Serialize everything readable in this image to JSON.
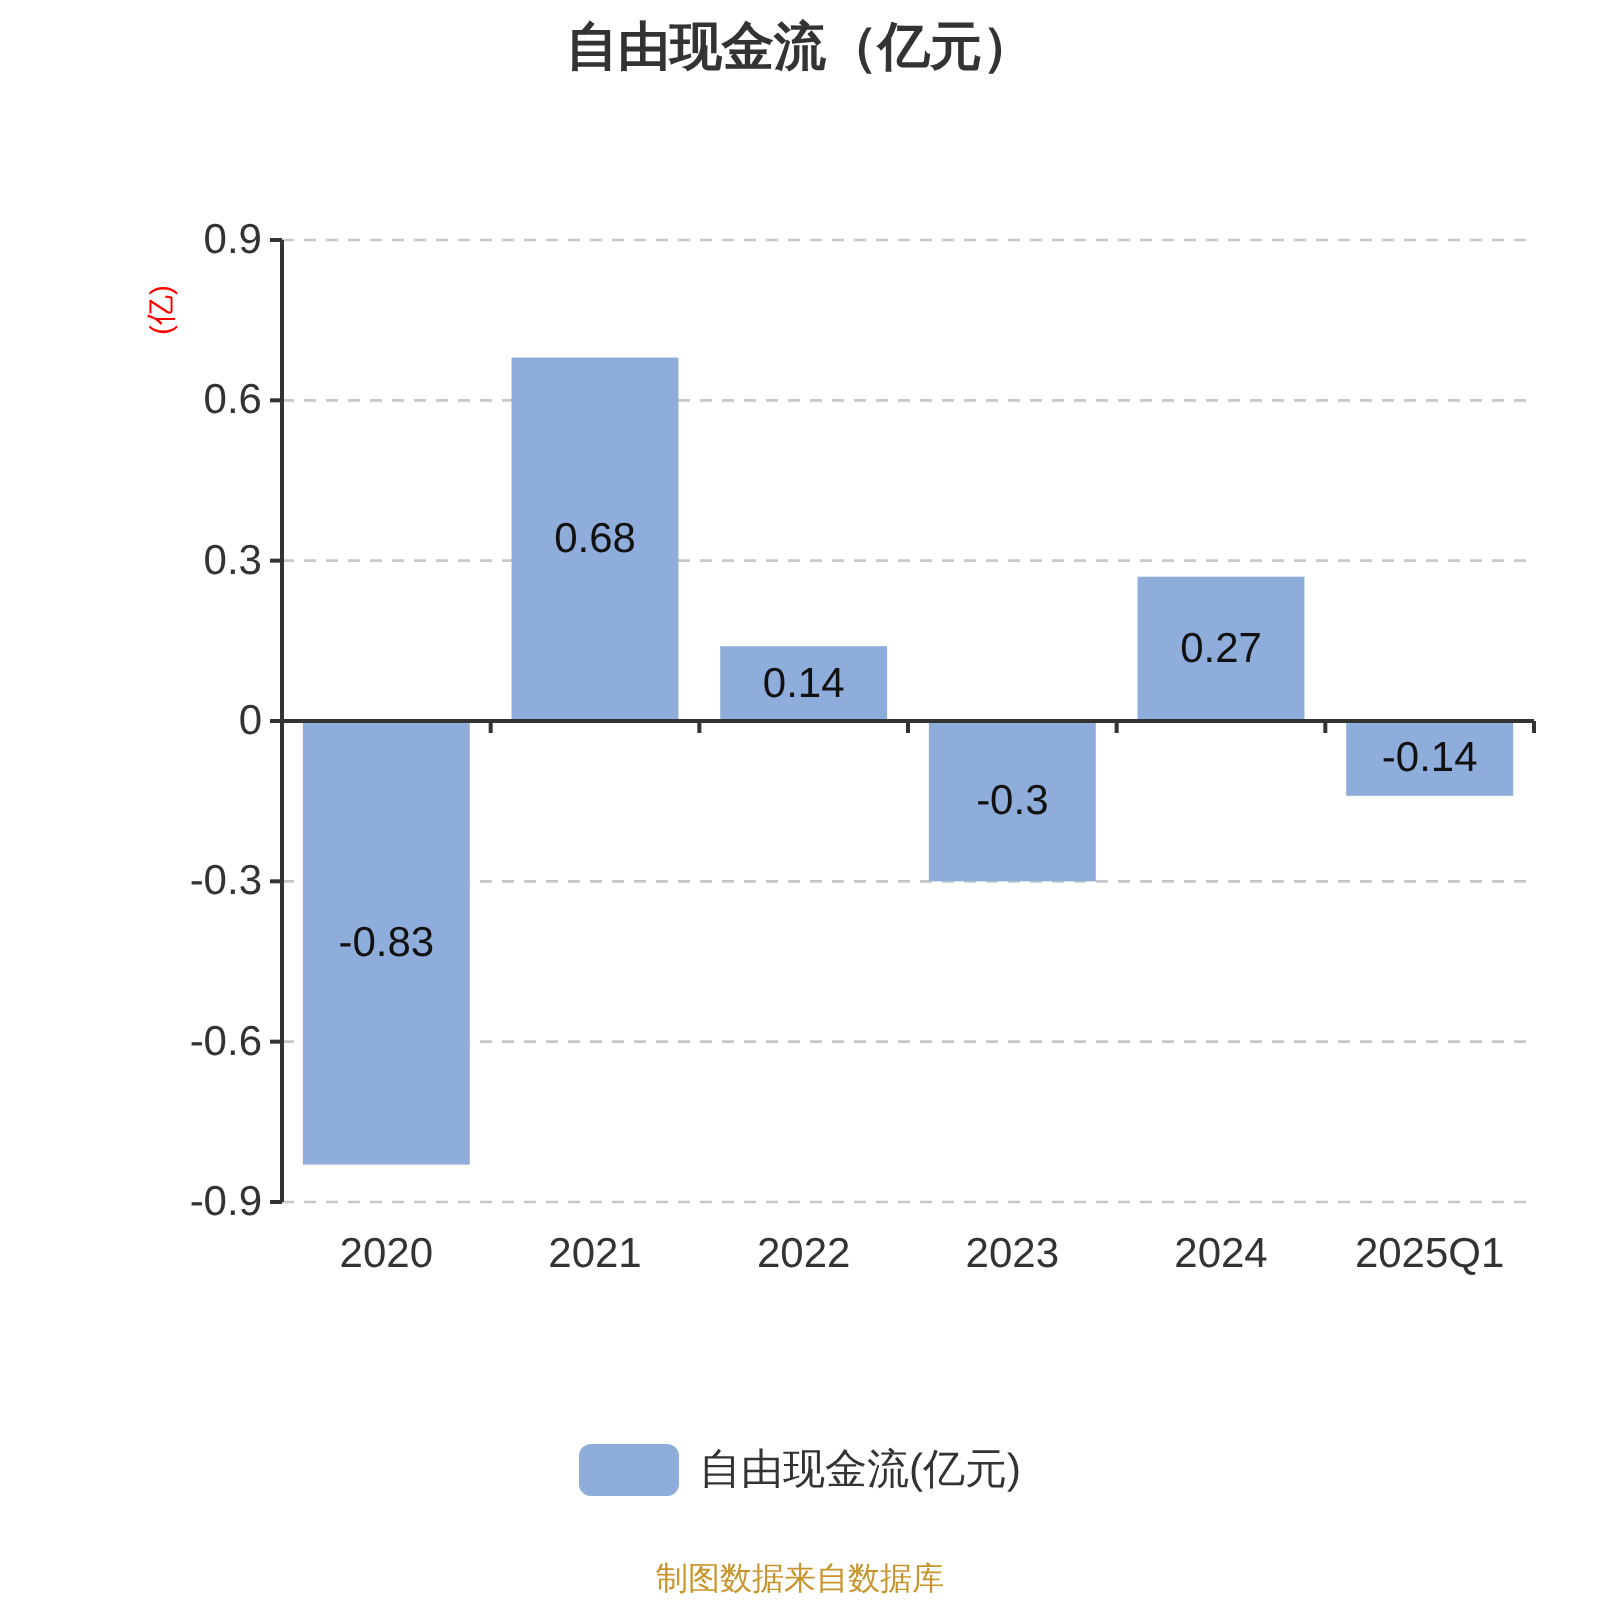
{
  "chart_data": {
    "type": "bar",
    "title": "自由现金流（亿元）",
    "ylabel": "(亿)",
    "categories": [
      "2020",
      "2021",
      "2022",
      "2023",
      "2024",
      "2025Q1"
    ],
    "series": [
      {
        "name": "自由现金流(亿元)",
        "color": "#8eaddb",
        "values": [
          -0.83,
          0.68,
          0.14,
          -0.3,
          0.27,
          -0.14
        ]
      }
    ],
    "ylim": [
      -0.9,
      0.9
    ],
    "yticks": [
      -0.9,
      -0.6,
      -0.3,
      0,
      0.3,
      0.6,
      0.9
    ],
    "grid": "y",
    "legend": "bottom",
    "data_labels": true,
    "annotations": [
      "制图数据来自数据库"
    ]
  }
}
